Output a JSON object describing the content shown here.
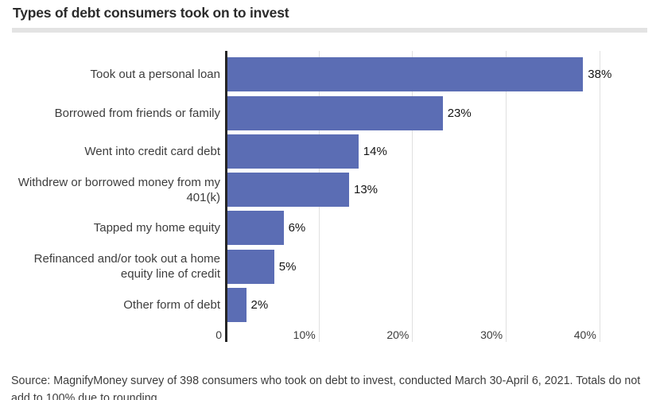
{
  "header": {
    "title": "Types of debt consumers took on to invest"
  },
  "chart_data": {
    "type": "bar",
    "orientation": "horizontal",
    "title": "Types of debt consumers took on to invest",
    "categories": [
      "Took out a personal loan",
      "Borrowed from friends or family",
      "Went into credit card debt",
      "Withdrew or borrowed money from my 401(k)",
      "Tapped my home equity",
      "Refinanced and/or took out a home equity line of credit",
      "Other form of debt"
    ],
    "values": [
      38,
      23,
      14,
      13,
      6,
      5,
      2
    ],
    "data_labels": [
      "38%",
      "23%",
      "14%",
      "13%",
      "6%",
      "5%",
      "2%"
    ],
    "x_ticks": [
      0,
      10,
      20,
      30,
      40
    ],
    "x_tick_labels": [
      "0",
      "10%",
      "20%",
      "30%",
      "40%"
    ],
    "xlim": [
      0,
      45
    ],
    "xlabel": "",
    "ylabel": "",
    "grid": "vertical-gridlines-on",
    "legend": "none",
    "bar_color": "#5b6db4",
    "axis_color": "#262626",
    "gridline_color": "#e0e0e0"
  },
  "footer": {
    "source": "Source: MagnifyMoney survey of 398 consumers who took on debt to invest, conducted March 30-April 6, 2021. Totals do not add to 100% due to rounding."
  }
}
